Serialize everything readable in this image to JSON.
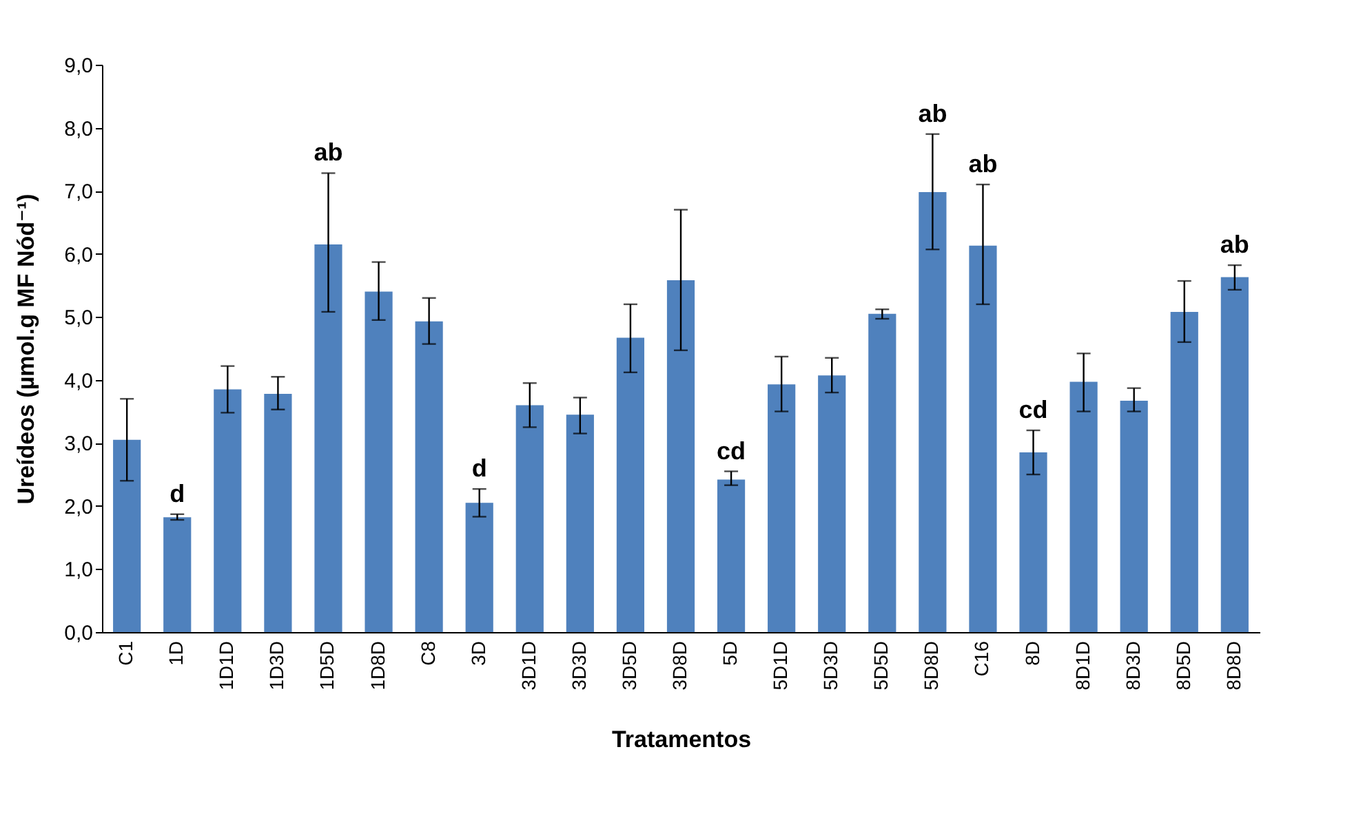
{
  "chart_data": {
    "type": "bar",
    "xlabel": "Tratamentos",
    "ylabel": "Ureídeos (µmol.g MF Nód⁻¹)",
    "categories": [
      "C1",
      "1D",
      "1D1D",
      "1D3D",
      "1D5D",
      "1D8D",
      "C8",
      "3D",
      "3D1D",
      "3D3D",
      "3D5D",
      "3D8D",
      "5D",
      "5D1D",
      "5D3D",
      "5D5D",
      "5D8D",
      "C16",
      "8D",
      "8D1D",
      "8D3D",
      "8D5D",
      "8D8D"
    ],
    "values": [
      3.05,
      1.82,
      3.85,
      3.78,
      6.15,
      5.4,
      4.93,
      2.05,
      3.6,
      3.45,
      4.67,
      5.58,
      2.42,
      3.93,
      4.07,
      5.05,
      6.98,
      6.13,
      2.85,
      3.97,
      3.67,
      5.08,
      5.63
    ],
    "errors": [
      [
        2.4,
        3.7
      ],
      [
        1.78,
        1.87
      ],
      [
        3.48,
        4.22
      ],
      [
        3.53,
        4.05
      ],
      [
        5.08,
        7.28
      ],
      [
        4.95,
        5.87
      ],
      [
        4.57,
        5.3
      ],
      [
        1.83,
        2.27
      ],
      [
        3.25,
        3.95
      ],
      [
        3.15,
        3.72
      ],
      [
        4.12,
        5.2
      ],
      [
        4.47,
        6.7
      ],
      [
        2.33,
        2.55
      ],
      [
        3.5,
        4.37
      ],
      [
        3.8,
        4.35
      ],
      [
        4.97,
        5.12
      ],
      [
        6.07,
        7.9
      ],
      [
        5.2,
        7.1
      ],
      [
        2.5,
        3.2
      ],
      [
        3.5,
        4.42
      ],
      [
        3.5,
        3.87
      ],
      [
        4.6,
        5.57
      ],
      [
        5.43,
        5.82
      ]
    ],
    "color": "#4f81bd",
    "ylim": [
      0,
      9
    ],
    "yticks": [
      {
        "value": 0,
        "label": "0,0"
      },
      {
        "value": 1,
        "label": "1,0"
      },
      {
        "value": 2,
        "label": "2,0"
      },
      {
        "value": 3,
        "label": "3,0"
      },
      {
        "value": 4,
        "label": "4,0"
      },
      {
        "value": 5,
        "label": "5,0"
      },
      {
        "value": 6,
        "label": "6,0"
      },
      {
        "value": 7,
        "label": "7,0"
      },
      {
        "value": 8,
        "label": "8,0"
      },
      {
        "value": 9,
        "label": "9,0"
      }
    ],
    "grid": false,
    "annotations": [
      {
        "text": "d",
        "x": "1D",
        "y": 1.87
      },
      {
        "text": "ab",
        "x": "1D5D",
        "y": 7.28
      },
      {
        "text": "d",
        "x": "3D",
        "y": 2.27
      },
      {
        "text": "cd",
        "x": "5D",
        "y": 2.55
      },
      {
        "text": "ab",
        "x": "5D8D",
        "y": 7.9
      },
      {
        "text": "ab",
        "x": "C16",
        "y": 7.1
      },
      {
        "text": "cd",
        "x": "8D",
        "y": 3.2
      },
      {
        "text": "ab",
        "x": "8D8D",
        "y": 5.82
      }
    ]
  }
}
